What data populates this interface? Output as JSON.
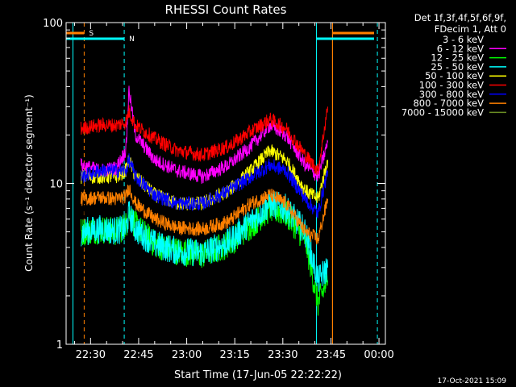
{
  "chart_data": {
    "type": "line",
    "title": "RHESSI Count Rates",
    "xlabel": "Start Time (17-Jun-05 22:22:22)",
    "ylabel": "Count Rate (s⁻¹ detector segment⁻¹)",
    "yscale": "log",
    "ylim": [
      1,
      100
    ],
    "xlim": [
      "22:22:22",
      "00:02:00"
    ],
    "x_ticks": [
      "22:30",
      "22:45",
      "23:00",
      "23:15",
      "23:30",
      "23:45",
      "00:00"
    ],
    "y_ticks": [
      "1",
      "10",
      "100"
    ],
    "grid": false,
    "legend_position": "top-right",
    "legend_header": [
      "Det 1f,3f,4f,5f,6f,9f,",
      "FDecim 1, Att 0"
    ],
    "x_samples": [
      "22:27",
      "22:33",
      "22:38",
      "22:41",
      "22:42",
      "22:44",
      "22:50",
      "22:57",
      "23:05",
      "23:13",
      "23:20",
      "23:26",
      "23:31",
      "23:37",
      "23:41",
      "23:44"
    ],
    "series": [
      {
        "name": "3 - 6 keV",
        "color": "#000000",
        "values": [
          6.5,
          6,
          6,
          7,
          12,
          7.5,
          4.2,
          2.8,
          2.6,
          3.5,
          6,
          7.5,
          6,
          3.6,
          2.5,
          3
        ]
      },
      {
        "name": "6 - 12 keV",
        "color": "#ff00ff",
        "values": [
          13,
          12,
          12.5,
          16,
          38,
          20,
          14,
          12,
          11,
          13,
          17,
          23,
          20,
          13,
          11,
          18
        ]
      },
      {
        "name": "12 - 25 keV",
        "color": "#00ff00",
        "values": [
          5,
          5.2,
          5,
          5.5,
          6.5,
          5.5,
          4.2,
          3.8,
          3.6,
          4.2,
          5.5,
          7,
          6.5,
          4.5,
          1.8,
          2.5
        ]
      },
      {
        "name": "25 - 50 keV",
        "color": "#00ffff",
        "values": [
          5,
          5.2,
          5.1,
          5.2,
          6.5,
          5.2,
          4.2,
          3.8,
          3.7,
          4.3,
          5.8,
          7.5,
          7,
          5,
          2.5,
          3
        ]
      },
      {
        "name": "50 - 100 keV",
        "color": "#ffff00",
        "values": [
          11,
          11,
          11,
          12,
          14,
          11,
          8.5,
          7.5,
          7.5,
          9,
          12,
          16,
          14,
          9,
          8,
          14
        ]
      },
      {
        "name": "100 - 300 keV",
        "color": "#ff0000",
        "values": [
          22,
          23,
          23,
          24,
          28,
          23,
          19,
          16,
          15,
          17,
          21,
          25,
          22,
          15,
          12,
          30
        ]
      },
      {
        "name": "300 - 800 keV",
        "color": "#0000ff",
        "values": [
          11,
          12,
          12,
          12,
          14,
          11,
          8.5,
          7.5,
          7.5,
          9,
          11,
          13,
          12,
          8,
          6.5,
          12
        ]
      },
      {
        "name": "800 - 7000 keV",
        "color": "#ff8000",
        "values": [
          8,
          8.2,
          8,
          8.3,
          9.5,
          7.5,
          6,
          5.3,
          5.2,
          5.8,
          7.5,
          8.5,
          7.5,
          5,
          4.5,
          8
        ]
      },
      {
        "name": "7000 - 15000 keV",
        "color": "#6b8e23",
        "values": []
      }
    ],
    "markers": [
      {
        "label": "S",
        "type": "saa",
        "color": "#ff8000"
      },
      {
        "label": "N",
        "type": "night",
        "color": "#00ffff"
      }
    ],
    "footer": "17-Oct-2021 15:09"
  }
}
